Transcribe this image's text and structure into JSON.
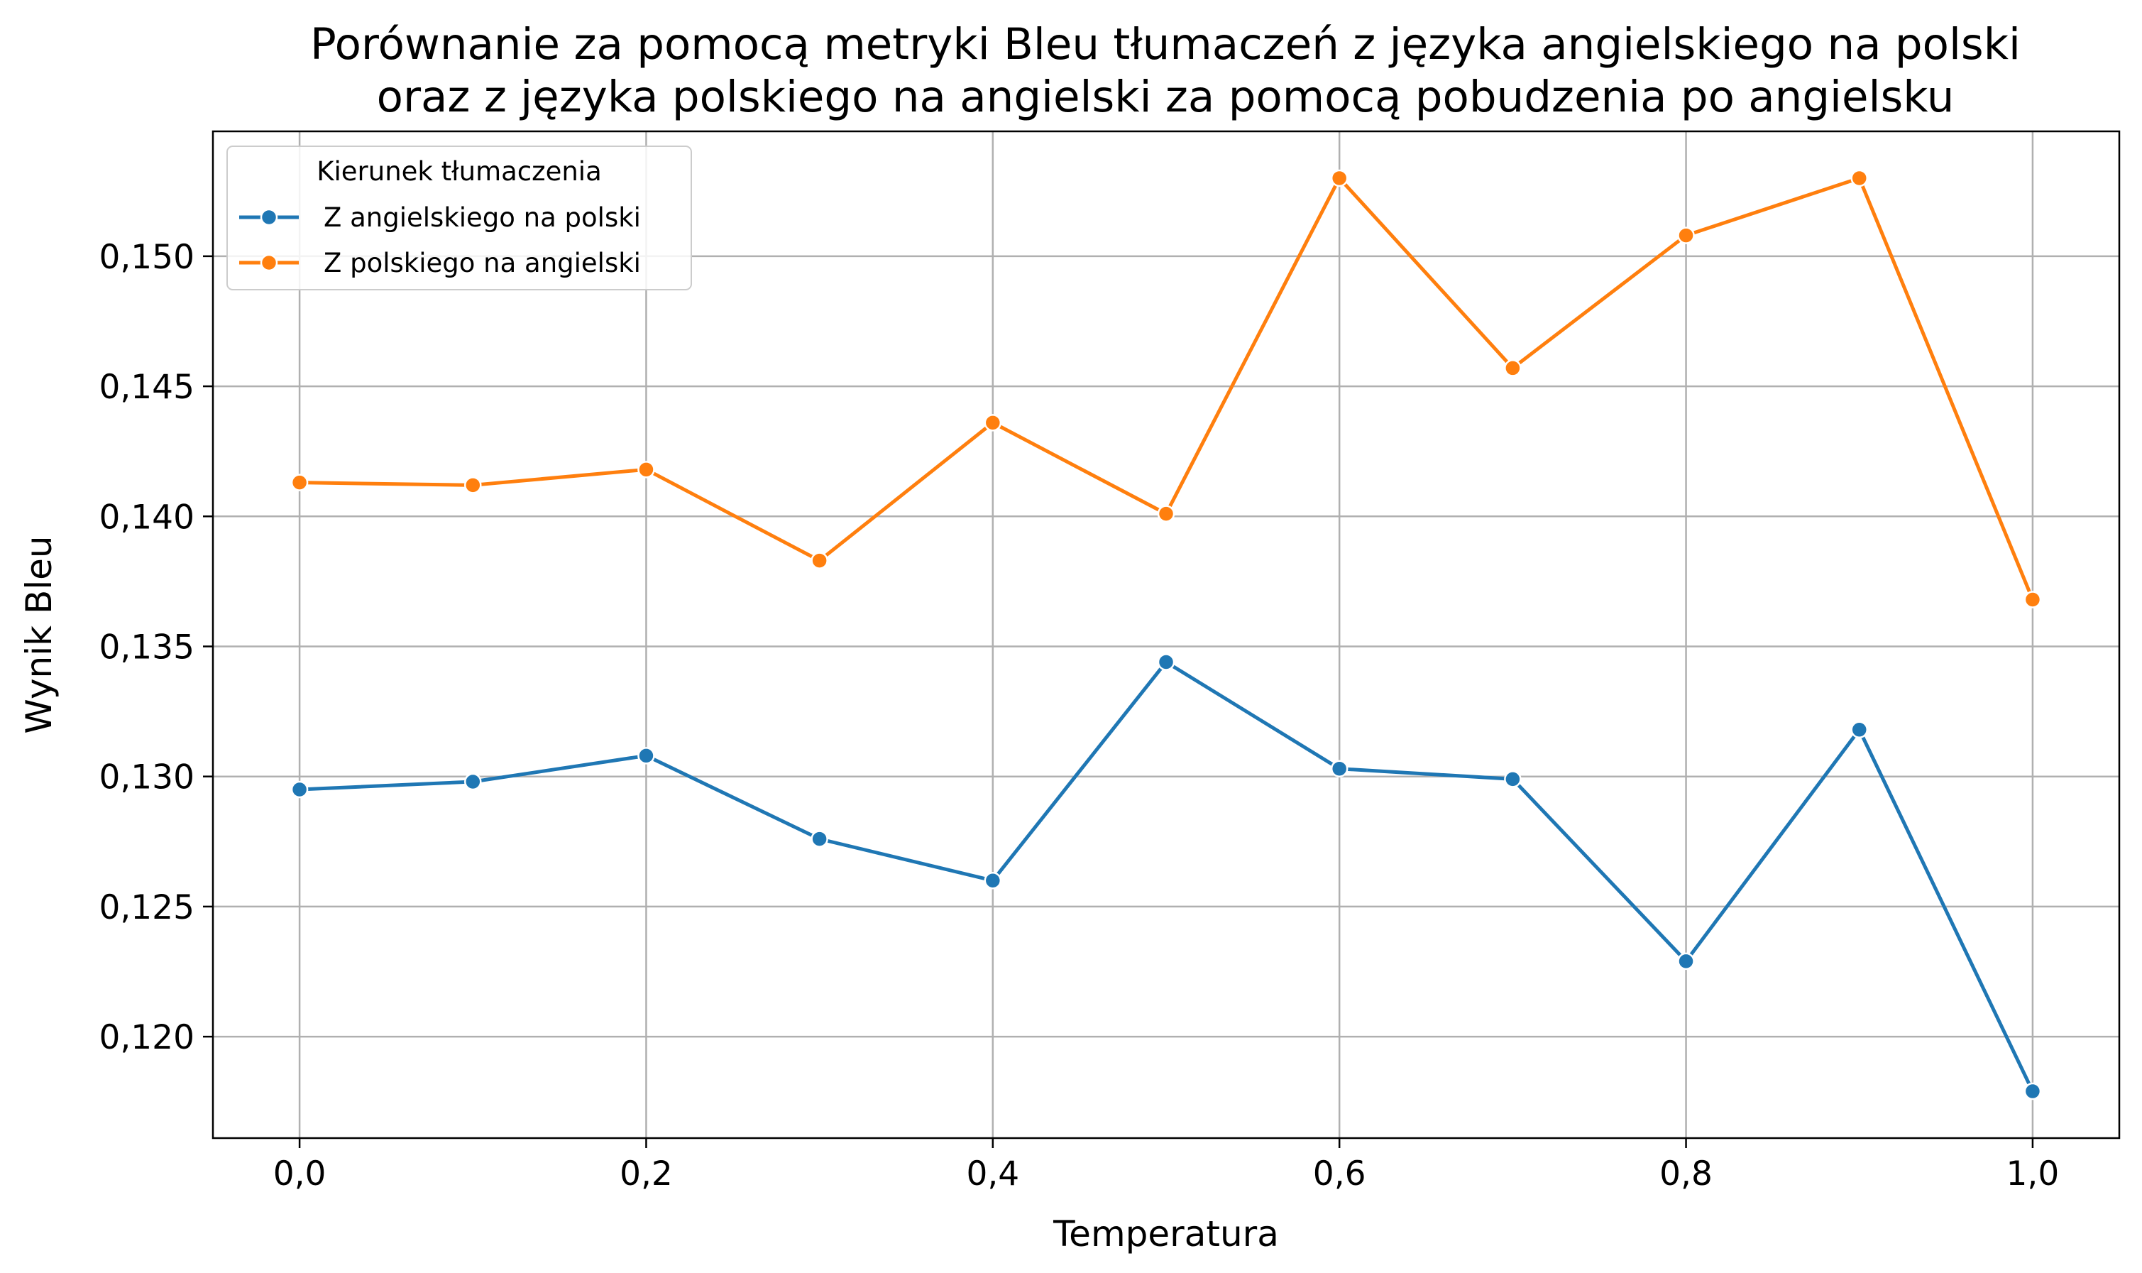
{
  "chart_data": {
    "type": "line",
    "title_lines": [
      "Porównanie za pomocą metryki Bleu tłumaczeń z języka angielskiego na polski",
      "oraz z języka polskiego na angielski za pomocą pobudzenia po angielsku"
    ],
    "xlabel": "Temperatura",
    "ylabel": "Wynik Bleu",
    "x": [
      0.0,
      0.1,
      0.2,
      0.3,
      0.4,
      0.5,
      0.6,
      0.7,
      0.8,
      0.9,
      1.0
    ],
    "xlim": [
      -0.05,
      1.05
    ],
    "ylim": [
      0.1161,
      0.1548
    ],
    "x_ticks": [
      0.0,
      0.2,
      0.4,
      0.6,
      0.8,
      1.0
    ],
    "x_tick_labels": [
      "0,0",
      "0,2",
      "0,4",
      "0,6",
      "0,8",
      "1,0"
    ],
    "y_ticks": [
      0.12,
      0.125,
      0.13,
      0.135,
      0.14,
      0.145,
      0.15
    ],
    "y_tick_labels": [
      "0,120",
      "0,125",
      "0,130",
      "0,135",
      "0,140",
      "0,145",
      "0,150"
    ],
    "grid": true,
    "legend": {
      "title": "Kierunek tłumaczenia",
      "placement": "top-left"
    },
    "series": [
      {
        "name": "Z angielskiego na polski",
        "color": "#1f77b4",
        "values": [
          0.1295,
          0.1298,
          0.1308,
          0.1276,
          0.126,
          0.1344,
          0.1303,
          0.1299,
          0.1229,
          0.1318,
          0.1179
        ]
      },
      {
        "name": "Z polskiego na angielski",
        "color": "#ff7f0e",
        "values": [
          0.1413,
          0.1412,
          0.1418,
          0.1383,
          0.1436,
          0.1401,
          0.153,
          0.1457,
          0.1508,
          0.153,
          0.1368
        ]
      }
    ]
  }
}
